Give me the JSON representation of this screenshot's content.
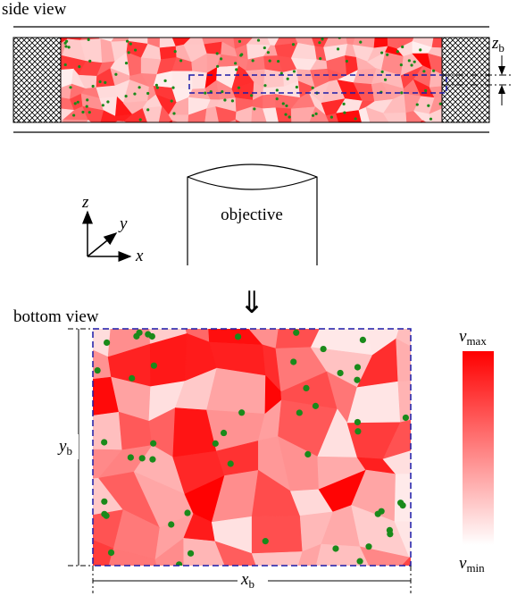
{
  "side_view": {
    "label": "side view",
    "depth_label": {
      "symbol": "z",
      "sub": "b"
    }
  },
  "objective": {
    "label": "objective"
  },
  "axes": {
    "z": "z",
    "y": "y",
    "x": "x"
  },
  "arrow": "⇓",
  "bottom_view": {
    "label": "bottom view",
    "width_label": {
      "symbol": "x",
      "sub": "b"
    },
    "height_label": {
      "symbol": "y",
      "sub": "b"
    }
  },
  "colorbar": {
    "max": {
      "symbol": "ν",
      "sub": "max"
    },
    "min": {
      "symbol": "ν",
      "sub": "min"
    }
  }
}
